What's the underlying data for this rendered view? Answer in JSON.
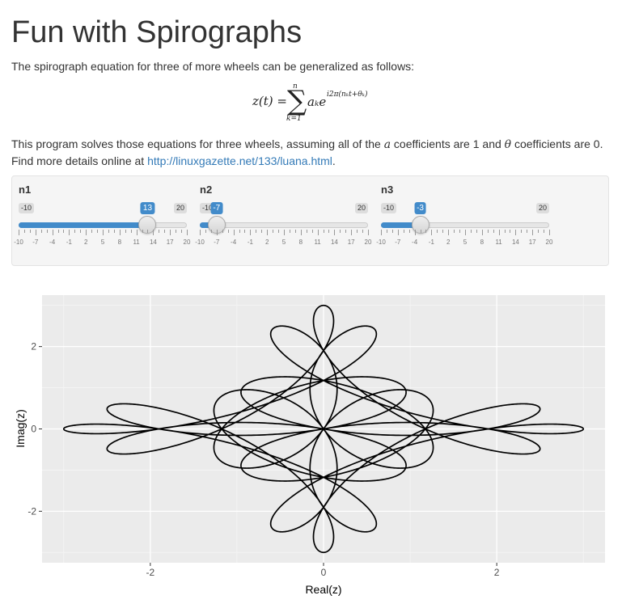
{
  "page": {
    "title": "Fun with Spirographs",
    "intro": "The spirograph equation for three of more wheels can be generalized as follows:",
    "equation": {
      "lhs": "z(t) =",
      "sigma": "∑",
      "upper": "n",
      "lower": "k=1",
      "term": "aₖe",
      "exponent": "i2π(nₖt+θₖ)"
    },
    "desc": {
      "part1": "This program solves those equations for three wheels, assuming all of the ",
      "a_symbol": "a",
      "part2": " coefficients are 1 and ",
      "theta_symbol": "θ",
      "part3": " coefficients are 0. Find more details online at ",
      "link_text": "http://linuxgazette.net/133/luana.html",
      "part4": "."
    }
  },
  "sliders": [
    {
      "label": "n1",
      "min": -10,
      "max": 20,
      "value": 13
    },
    {
      "label": "n2",
      "min": -10,
      "max": 20,
      "value": -7
    },
    {
      "label": "n3",
      "min": -10,
      "max": 20,
      "value": -3
    }
  ],
  "slider_ticks": [
    "-10",
    "-7",
    "-4",
    "-1",
    "2",
    "5",
    "8",
    "11",
    "14",
    "17",
    "20"
  ],
  "colors": {
    "accent": "#428bca",
    "panel_bg": "#ebebeb",
    "grid": "#ffffff",
    "curve": "#000000"
  },
  "chart_data": {
    "type": "line",
    "title": "",
    "xlabel": "Real(z)",
    "ylabel": "Imag(z)",
    "xlim": [
      -3.25,
      3.25
    ],
    "ylim": [
      -3.25,
      3.25
    ],
    "x_ticks": [
      -2,
      0,
      2
    ],
    "y_ticks": [
      -2,
      0,
      2
    ],
    "x_tick_labels": [
      "-2",
      "0",
      "2"
    ],
    "y_tick_labels": [
      "-2",
      "0",
      "2"
    ],
    "grid": true,
    "series": [
      {
        "wheel_frequencies": [
          13,
          -7,
          -3
        ],
        "coefficients": [
          1,
          1,
          1
        ],
        "phases": [
          0,
          0,
          0
        ],
        "t_range": [
          0,
          1
        ]
      }
    ]
  }
}
